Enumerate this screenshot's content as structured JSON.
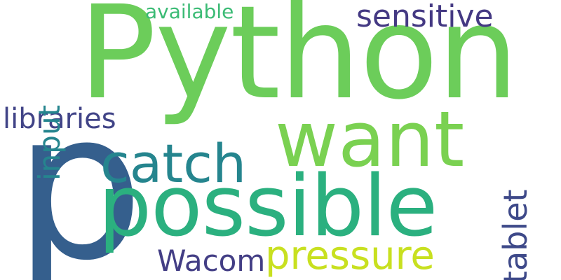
{
  "words": [
    {
      "text": "Python",
      "color": "#6ccd5a"
    },
    {
      "text": "p",
      "color": "#355f8d"
    },
    {
      "text": "possible",
      "color": "#2bb07f"
    },
    {
      "text": "want",
      "color": "#7ad151"
    },
    {
      "text": "catch",
      "color": "#25858e"
    },
    {
      "text": "sensitive",
      "color": "#443983"
    },
    {
      "text": "available",
      "color": "#3bbb75"
    },
    {
      "text": "libraries",
      "color": "#414487"
    },
    {
      "text": "input",
      "color": "#25858e"
    },
    {
      "text": "tablet",
      "color": "#3e4989"
    },
    {
      "text": "Wacom",
      "color": "#433e85"
    },
    {
      "text": "pressure",
      "color": "#c8e020"
    }
  ]
}
